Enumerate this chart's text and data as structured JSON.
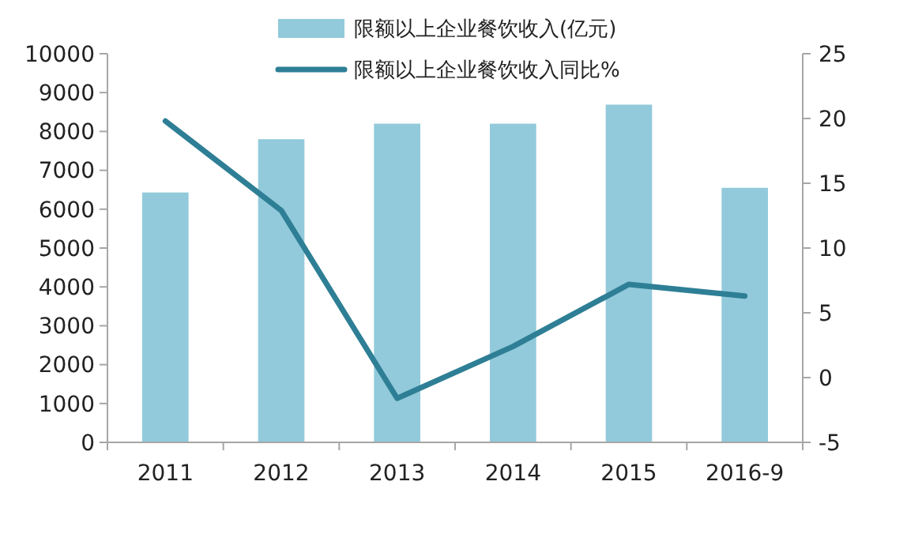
{
  "chart_data": {
    "type": "bar",
    "categories": [
      "2011",
      "2012",
      "2013",
      "2014",
      "2015",
      "2016-9"
    ],
    "series": [
      {
        "name": "限额以上企业餐饮收入(亿元)",
        "color": "#92cadb",
        "values": [
          6430,
          7800,
          8200,
          8200,
          8690,
          6550
        ]
      },
      {
        "name": "限额以上企业餐饮收入同比%",
        "type": "line",
        "axis": "y2",
        "color": "#2e7f95",
        "values": [
          19.8,
          12.9,
          -1.6,
          2.4,
          7.2,
          6.3
        ]
      }
    ],
    "ylim": [
      0,
      10000
    ],
    "yticks": [
      0,
      1000,
      2000,
      3000,
      4000,
      5000,
      6000,
      7000,
      8000,
      9000,
      10000
    ],
    "y2lim": [
      -5,
      25
    ],
    "y2ticks": [
      -5,
      0,
      5,
      10,
      15,
      20,
      25
    ],
    "legend": "top",
    "grid": false,
    "marker": "none",
    "line_style": "solid"
  }
}
